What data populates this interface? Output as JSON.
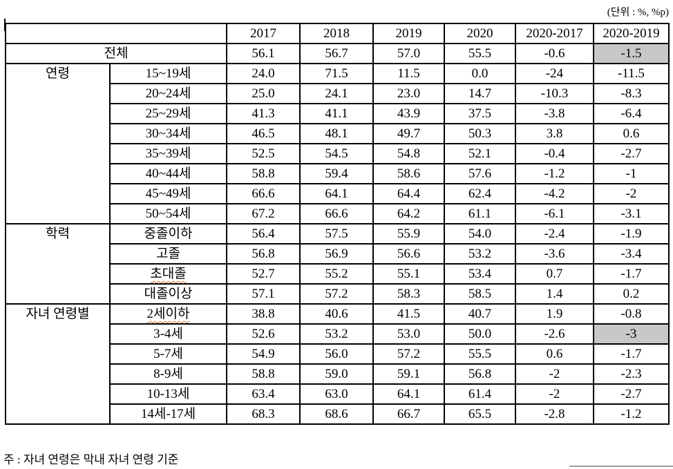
{
  "unit_label": "(단위 : %, %p)",
  "footnote": "주 : 자녀 연령은 막내 자녀 연령 기준",
  "colors": {
    "highlight": "#c8c8c8",
    "border": "#000000",
    "spellcheck_underline": "#c87334"
  },
  "chart_data": {
    "type": "table",
    "title": "",
    "columns": [
      "",
      "",
      "2017",
      "2018",
      "2019",
      "2020",
      "2020-2017",
      "2020-2019"
    ]
  },
  "table": {
    "header": [
      "2017",
      "2018",
      "2019",
      "2020",
      "2020-2017",
      "2020-2019"
    ],
    "rows": [
      {
        "merged": true,
        "label": "전체",
        "values": [
          "56.1",
          "56.7",
          "57.0",
          "55.5",
          "-0.6",
          "-1.5"
        ],
        "highlight": [
          5
        ]
      },
      {
        "group": "연령",
        "group_rows": 8,
        "label": "15~19세",
        "values": [
          "24.0",
          "71.5",
          "11.5",
          "0.0",
          "-24",
          "-11.5"
        ]
      },
      {
        "label": "20~24세",
        "values": [
          "25.0",
          "24.1",
          "23.0",
          "14.7",
          "-10.3",
          "-8.3"
        ]
      },
      {
        "label": "25~29세",
        "values": [
          "41.3",
          "41.1",
          "43.9",
          "37.5",
          "-3.8",
          "-6.4"
        ]
      },
      {
        "label": "30~34세",
        "values": [
          "46.5",
          "48.1",
          "49.7",
          "50.3",
          "3.8",
          "0.6"
        ]
      },
      {
        "label": "35~39세",
        "values": [
          "52.5",
          "54.5",
          "54.8",
          "52.1",
          "-0.4",
          "-2.7"
        ]
      },
      {
        "label": "40~44세",
        "values": [
          "58.8",
          "59.4",
          "58.6",
          "57.6",
          "-1.2",
          "-1"
        ]
      },
      {
        "label": "45~49세",
        "values": [
          "66.6",
          "64.1",
          "64.4",
          "62.4",
          "-4.2",
          "-2"
        ]
      },
      {
        "label": "50~54세",
        "values": [
          "67.2",
          "66.6",
          "64.2",
          "61.1",
          "-6.1",
          "-3.1"
        ]
      },
      {
        "group": "학력",
        "group_rows": 4,
        "label": "중졸이하",
        "values": [
          "56.4",
          "57.5",
          "55.9",
          "54.0",
          "-2.4",
          "-1.9"
        ]
      },
      {
        "label": "고졸",
        "values": [
          "56.8",
          "56.9",
          "56.6",
          "53.2",
          "-3.6",
          "-3.4"
        ]
      },
      {
        "label": "초대졸",
        "label_underline": true,
        "values": [
          "52.7",
          "55.2",
          "55.1",
          "53.4",
          "0.7",
          "-1.7"
        ]
      },
      {
        "label": "대졸이상",
        "values": [
          "57.1",
          "57.2",
          "58.3",
          "58.5",
          "1.4",
          "0.2"
        ]
      },
      {
        "group": "자녀 연령별",
        "group_rows": 6,
        "label": "2세이하",
        "label_underline": true,
        "values": [
          "38.8",
          "40.6",
          "41.5",
          "40.7",
          "1.9",
          "-0.8"
        ]
      },
      {
        "label": "3-4세",
        "values": [
          "52.6",
          "53.2",
          "53.0",
          "50.0",
          "-2.6",
          "-3"
        ],
        "highlight": [
          5
        ]
      },
      {
        "label": "5-7세",
        "values": [
          "54.9",
          "56.0",
          "57.2",
          "55.5",
          "0.6",
          "-1.7"
        ]
      },
      {
        "label": "8-9세",
        "values": [
          "58.8",
          "59.0",
          "59.1",
          "56.8",
          "-2",
          "-2.3"
        ]
      },
      {
        "label": "10-13세",
        "values": [
          "63.4",
          "63.0",
          "64.1",
          "61.4",
          "-2",
          "-2.7"
        ]
      },
      {
        "label": "14세-17세",
        "values": [
          "68.3",
          "68.6",
          "66.7",
          "65.5",
          "-2.8",
          "-1.2"
        ]
      }
    ]
  }
}
